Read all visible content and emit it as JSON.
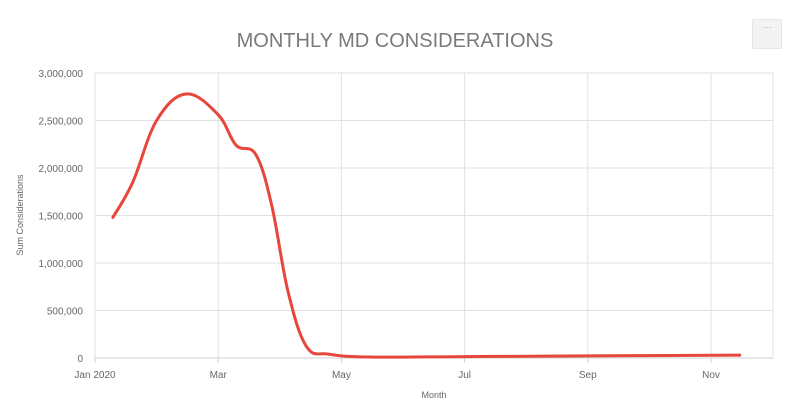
{
  "chart_data": {
    "type": "line",
    "title": "MONTHLY MD CONSIDERATIONS",
    "xlabel": "Month",
    "ylabel": "Sum Considerations",
    "x_tick_labels": [
      "Jan 2020",
      "Mar",
      "May",
      "Jul",
      "Sep",
      "Nov"
    ],
    "y_tick_labels": [
      "0",
      "500,000",
      "1,000,000",
      "1,500,000",
      "2,000,000",
      "2,500,000",
      "3,000,000"
    ],
    "ylim": [
      0,
      3000000
    ],
    "xlim": [
      "2020-01-01",
      "2020-12-01"
    ],
    "grid": true,
    "legend": "none",
    "series": [
      {
        "color": "#e8463b",
        "points": [
          {
            "x": "2020-01-10",
            "y": 1480000
          },
          {
            "x": "2020-01-20",
            "y": 1850000
          },
          {
            "x": "2020-02-01",
            "y": 2500000
          },
          {
            "x": "2020-02-15",
            "y": 2780000
          },
          {
            "x": "2020-03-01",
            "y": 2560000
          },
          {
            "x": "2020-03-10",
            "y": 2240000
          },
          {
            "x": "2020-03-20",
            "y": 2140000
          },
          {
            "x": "2020-03-28",
            "y": 1600000
          },
          {
            "x": "2020-04-05",
            "y": 700000
          },
          {
            "x": "2020-04-14",
            "y": 120000
          },
          {
            "x": "2020-04-25",
            "y": 40000
          },
          {
            "x": "2020-05-15",
            "y": 10000
          },
          {
            "x": "2020-07-01",
            "y": 15000
          },
          {
            "x": "2020-09-01",
            "y": 22000
          },
          {
            "x": "2020-11-15",
            "y": 30000
          }
        ]
      }
    ]
  },
  "toolbar": {
    "menu_icon": "ellipsis-icon",
    "menu_glyph": "···"
  }
}
